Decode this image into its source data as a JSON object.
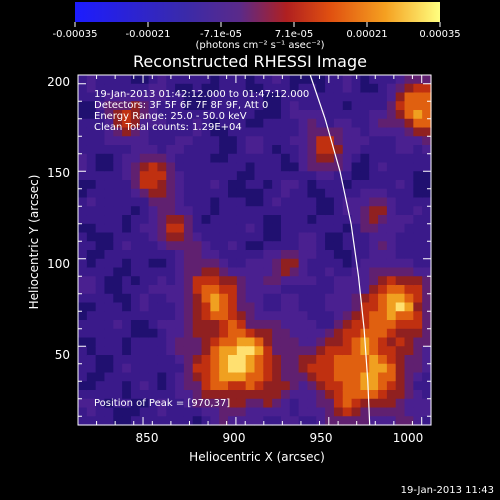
{
  "colorbar": {
    "tick_labels": [
      "-0.00035",
      "-0.00021",
      "-7.1e-05",
      "7.1e-05",
      "0.00021",
      "0.00035"
    ],
    "unit_label": "(photons cm⁻² s⁻¹ asec⁻²)"
  },
  "annotations": {
    "time_range": "19-Jan-2013 01:42:12.000 to 01:47:12.000",
    "detectors": "Detectors: 3F 5F 6F 7F 8F 9F, Att 0",
    "energy": "Energy Range: 25.0 - 50.0 keV",
    "clean": "Clean     Total counts: 1.29E+04",
    "peak": "Position of Peak = [970,37]"
  },
  "footer": "19-Jan-2013 11:43",
  "chart_data": {
    "type": "heatmap",
    "title": "Reconstructed RHESSI Image",
    "xlabel": "Heliocentric X (arcsec)",
    "ylabel": "Heliocentric Y (arcsec)",
    "xlim": [
      815,
      1005
    ],
    "ylim": [
      5,
      205
    ],
    "x_ticks": [
      850,
      900,
      950,
      1000
    ],
    "y_ticks": [
      50,
      100,
      150,
      200
    ],
    "color_range": [
      -0.00035,
      0.00035
    ],
    "limb_curve": [
      [
        940,
        205
      ],
      [
        948,
        180
      ],
      [
        956,
        150
      ],
      [
        962,
        120
      ],
      [
        966,
        90
      ],
      [
        969,
        60
      ],
      [
        971,
        30
      ],
      [
        972,
        5
      ]
    ],
    "colors": {
      "limb": "#ffffff",
      "axis": "#ffffff"
    }
  }
}
